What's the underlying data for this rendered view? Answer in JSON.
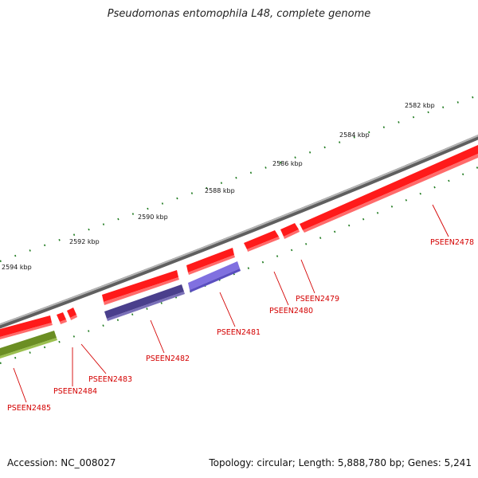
{
  "title": "Pseudomonas entomophila L48, complete genome",
  "accession": "Accession: NC_008027",
  "summary": "Topology: circular; Length: 5,888,780 bp; Genes: 5,241",
  "colors": {
    "backbone": "#8c8c8c",
    "forward_gene": "#ff1a1a",
    "reverse_gene_dark": "#4a3f8c",
    "reverse_gene_light": "#8070e0",
    "olive_gene": "#6b8e23",
    "tick": "#1e7a1e",
    "label": "#d40000"
  },
  "scale_labels": [
    "2582 kbp",
    "2584 kbp",
    "2586 kbp",
    "2588 kbp",
    "2590 kbp",
    "2592 kbp",
    "2594 kbp"
  ],
  "genes": [
    {
      "id": "PSEEN2478",
      "strand": "+",
      "color": "red"
    },
    {
      "id": "PSEEN2479",
      "strand": "+",
      "color": "red"
    },
    {
      "id": "PSEEN2480",
      "strand": "+",
      "color": "red"
    },
    {
      "id": "PSEEN2481",
      "strand": "-",
      "color": "light-purple"
    },
    {
      "id": "PSEEN2482",
      "strand": "-",
      "color": "dark-purple"
    },
    {
      "id": "PSEEN2483",
      "strand": "+",
      "color": "red"
    },
    {
      "id": "PSEEN2484",
      "strand": "+",
      "color": "red"
    },
    {
      "id": "PSEEN2485",
      "strand": "-",
      "color": "olive"
    }
  ]
}
